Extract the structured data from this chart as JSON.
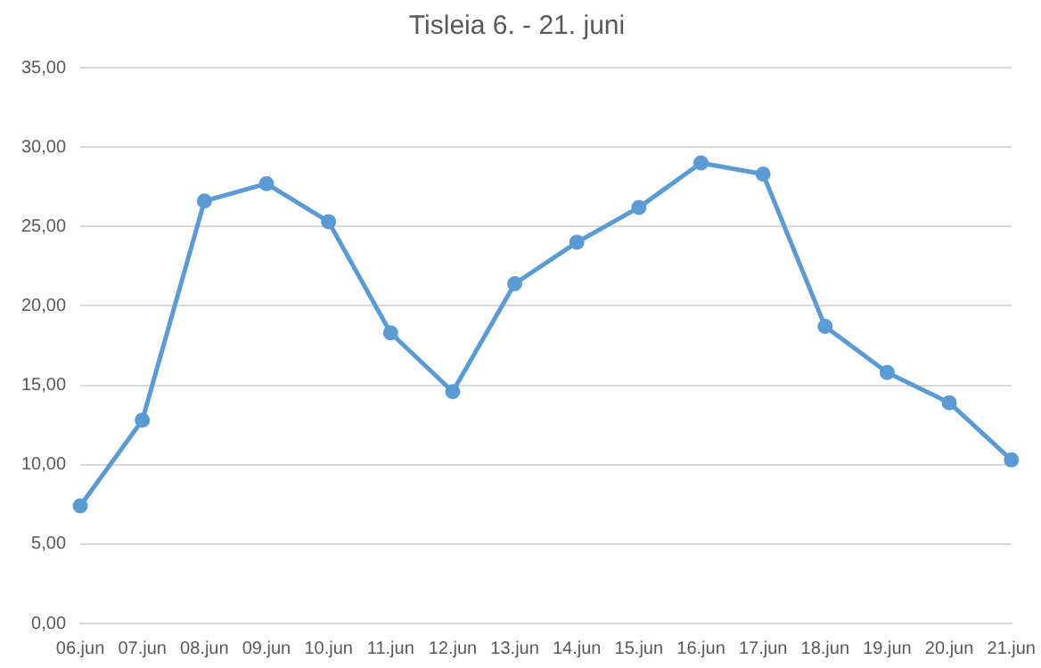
{
  "chart_data": {
    "type": "line",
    "title": "Tisleia 6. - 21. juni",
    "categories": [
      "06.jun",
      "07.jun",
      "08.jun",
      "09.jun",
      "10.jun",
      "11.jun",
      "12.jun",
      "13.jun",
      "14.jun",
      "15.jun",
      "16.jun",
      "17.jun",
      "18.jun",
      "19.jun",
      "20.jun",
      "21.jun"
    ],
    "series": [
      {
        "color": "#5b9bd5",
        "values": [
          7.4,
          12.8,
          26.6,
          27.7,
          25.3,
          18.3,
          14.6,
          21.4,
          24.0,
          26.2,
          29.0,
          28.3,
          18.7,
          15.8,
          13.9,
          10.3
        ]
      }
    ],
    "ylim": [
      0,
      35
    ],
    "yticks": [
      {
        "value": 0,
        "label": "0,00"
      },
      {
        "value": 5,
        "label": "5,00"
      },
      {
        "value": 10,
        "label": "10,00"
      },
      {
        "value": 15,
        "label": "15,00"
      },
      {
        "value": 20,
        "label": "20,00"
      },
      {
        "value": 25,
        "label": "25,00"
      },
      {
        "value": 30,
        "label": "30,00"
      },
      {
        "value": 35,
        "label": "35,00"
      }
    ],
    "grid": "y",
    "legend": false,
    "marker": "circle",
    "line_style": "solid"
  }
}
